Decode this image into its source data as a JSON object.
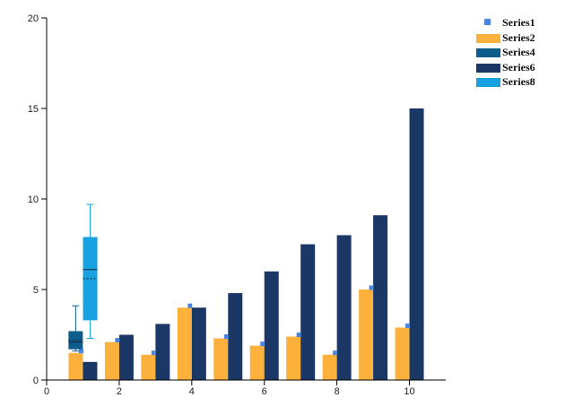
{
  "chart_data": {
    "type": "bar",
    "x": [
      1,
      2,
      3,
      4,
      5,
      6,
      7,
      8,
      9,
      10
    ],
    "xlim": [
      0,
      11
    ],
    "ylim": [
      0,
      20
    ],
    "x_ticks": [
      "0",
      "2",
      "4",
      "6",
      "8",
      "10"
    ],
    "y_ticks": [
      "0",
      "5",
      "10",
      "15",
      "20"
    ],
    "grid": false,
    "legend_position": "top-right",
    "series": [
      {
        "name": "Series1",
        "kind": "marker",
        "color": "#4a86e0",
        "values": [
          1.6,
          2.2,
          1.5,
          4.1,
          2.4,
          2.0,
          2.5,
          1.5,
          5.1,
          3.0
        ]
      },
      {
        "name": "Series2",
        "kind": "bar",
        "color": "#fbb13c",
        "values": [
          1.5,
          2.1,
          1.4,
          4.0,
          2.3,
          1.9,
          2.4,
          1.4,
          5.0,
          2.9
        ]
      },
      {
        "name": "Series4",
        "kind": "boxplot",
        "color": "#0d5d8c",
        "box": {
          "x": 0.8,
          "whisker_low": 1.6,
          "q1": 1.7,
          "median": 2.1,
          "q3": 2.7,
          "whisker_high": 4.1
        }
      },
      {
        "name": "Series6",
        "kind": "bar",
        "color": "#1b3766",
        "values": [
          1.0,
          2.5,
          3.1,
          4.0,
          4.8,
          6.0,
          7.5,
          8.0,
          9.1,
          15.0
        ]
      },
      {
        "name": "Series8",
        "kind": "boxplot",
        "color": "#17a1e0",
        "box": {
          "x": 1.2,
          "whisker_low": 2.3,
          "q1": 3.3,
          "median": 6.1,
          "q3": 7.9,
          "whisker_high": 9.7
        }
      }
    ]
  }
}
